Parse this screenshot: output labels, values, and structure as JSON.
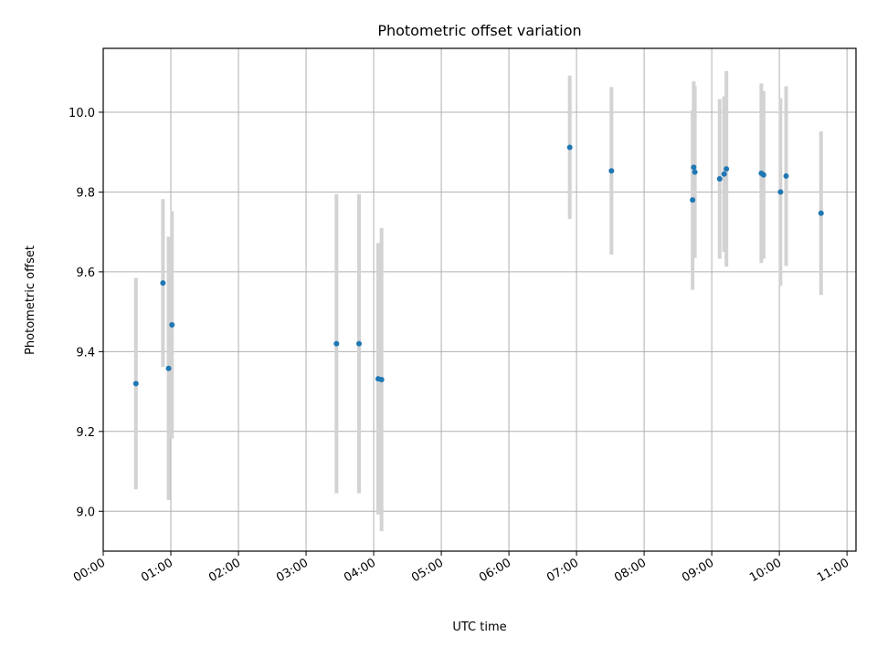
{
  "chart_data": {
    "type": "scatter",
    "title": "Photometric offset variation",
    "xlabel": "UTC time",
    "ylabel": "Photometric offset",
    "x_tick_labels": [
      "00:00",
      "01:00",
      "02:00",
      "03:00",
      "04:00",
      "05:00",
      "06:00",
      "07:00",
      "08:00",
      "09:00",
      "10:00",
      "11:00"
    ],
    "y_tick_values": [
      9.0,
      9.2,
      9.4,
      9.6,
      9.8,
      10.0
    ],
    "y_tick_labels": [
      "9.0",
      "9.2",
      "9.4",
      "9.6",
      "9.8",
      "10.0"
    ],
    "xlim": [
      "00:00",
      "11:08"
    ],
    "ylim": [
      8.9,
      10.16
    ],
    "grid": true,
    "point_color": "#1f77b4",
    "errorbar_color": "#d3d3d3",
    "points": [
      {
        "x": "00:29",
        "y": 9.32,
        "err": 0.265
      },
      {
        "x": "00:53",
        "y": 9.572,
        "err": 0.21
      },
      {
        "x": "00:58",
        "y": 9.358,
        "err": 0.33
      },
      {
        "x": "01:01",
        "y": 9.467,
        "err": 0.285
      },
      {
        "x": "03:27",
        "y": 9.42,
        "err": 0.375
      },
      {
        "x": "03:47",
        "y": 9.42,
        "err": 0.375
      },
      {
        "x": "04:04",
        "y": 9.332,
        "err": 0.34
      },
      {
        "x": "04:07",
        "y": 9.33,
        "err": 0.38
      },
      {
        "x": "06:54",
        "y": 9.912,
        "err": 0.18
      },
      {
        "x": "07:31",
        "y": 9.853,
        "err": 0.21
      },
      {
        "x": "08:43",
        "y": 9.78,
        "err": 0.225
      },
      {
        "x": "08:44",
        "y": 9.862,
        "err": 0.215
      },
      {
        "x": "08:45",
        "y": 9.85,
        "err": 0.215
      },
      {
        "x": "09:07",
        "y": 9.833,
        "err": 0.2
      },
      {
        "x": "09:11",
        "y": 9.845,
        "err": 0.195
      },
      {
        "x": "09:13",
        "y": 9.858,
        "err": 0.245
      },
      {
        "x": "09:44",
        "y": 9.847,
        "err": 0.225
      },
      {
        "x": "09:46",
        "y": 9.843,
        "err": 0.21
      },
      {
        "x": "10:01",
        "y": 9.8,
        "err": 0.235
      },
      {
        "x": "10:06",
        "y": 9.84,
        "err": 0.225
      },
      {
        "x": "10:37",
        "y": 9.747,
        "err": 0.205
      }
    ]
  }
}
